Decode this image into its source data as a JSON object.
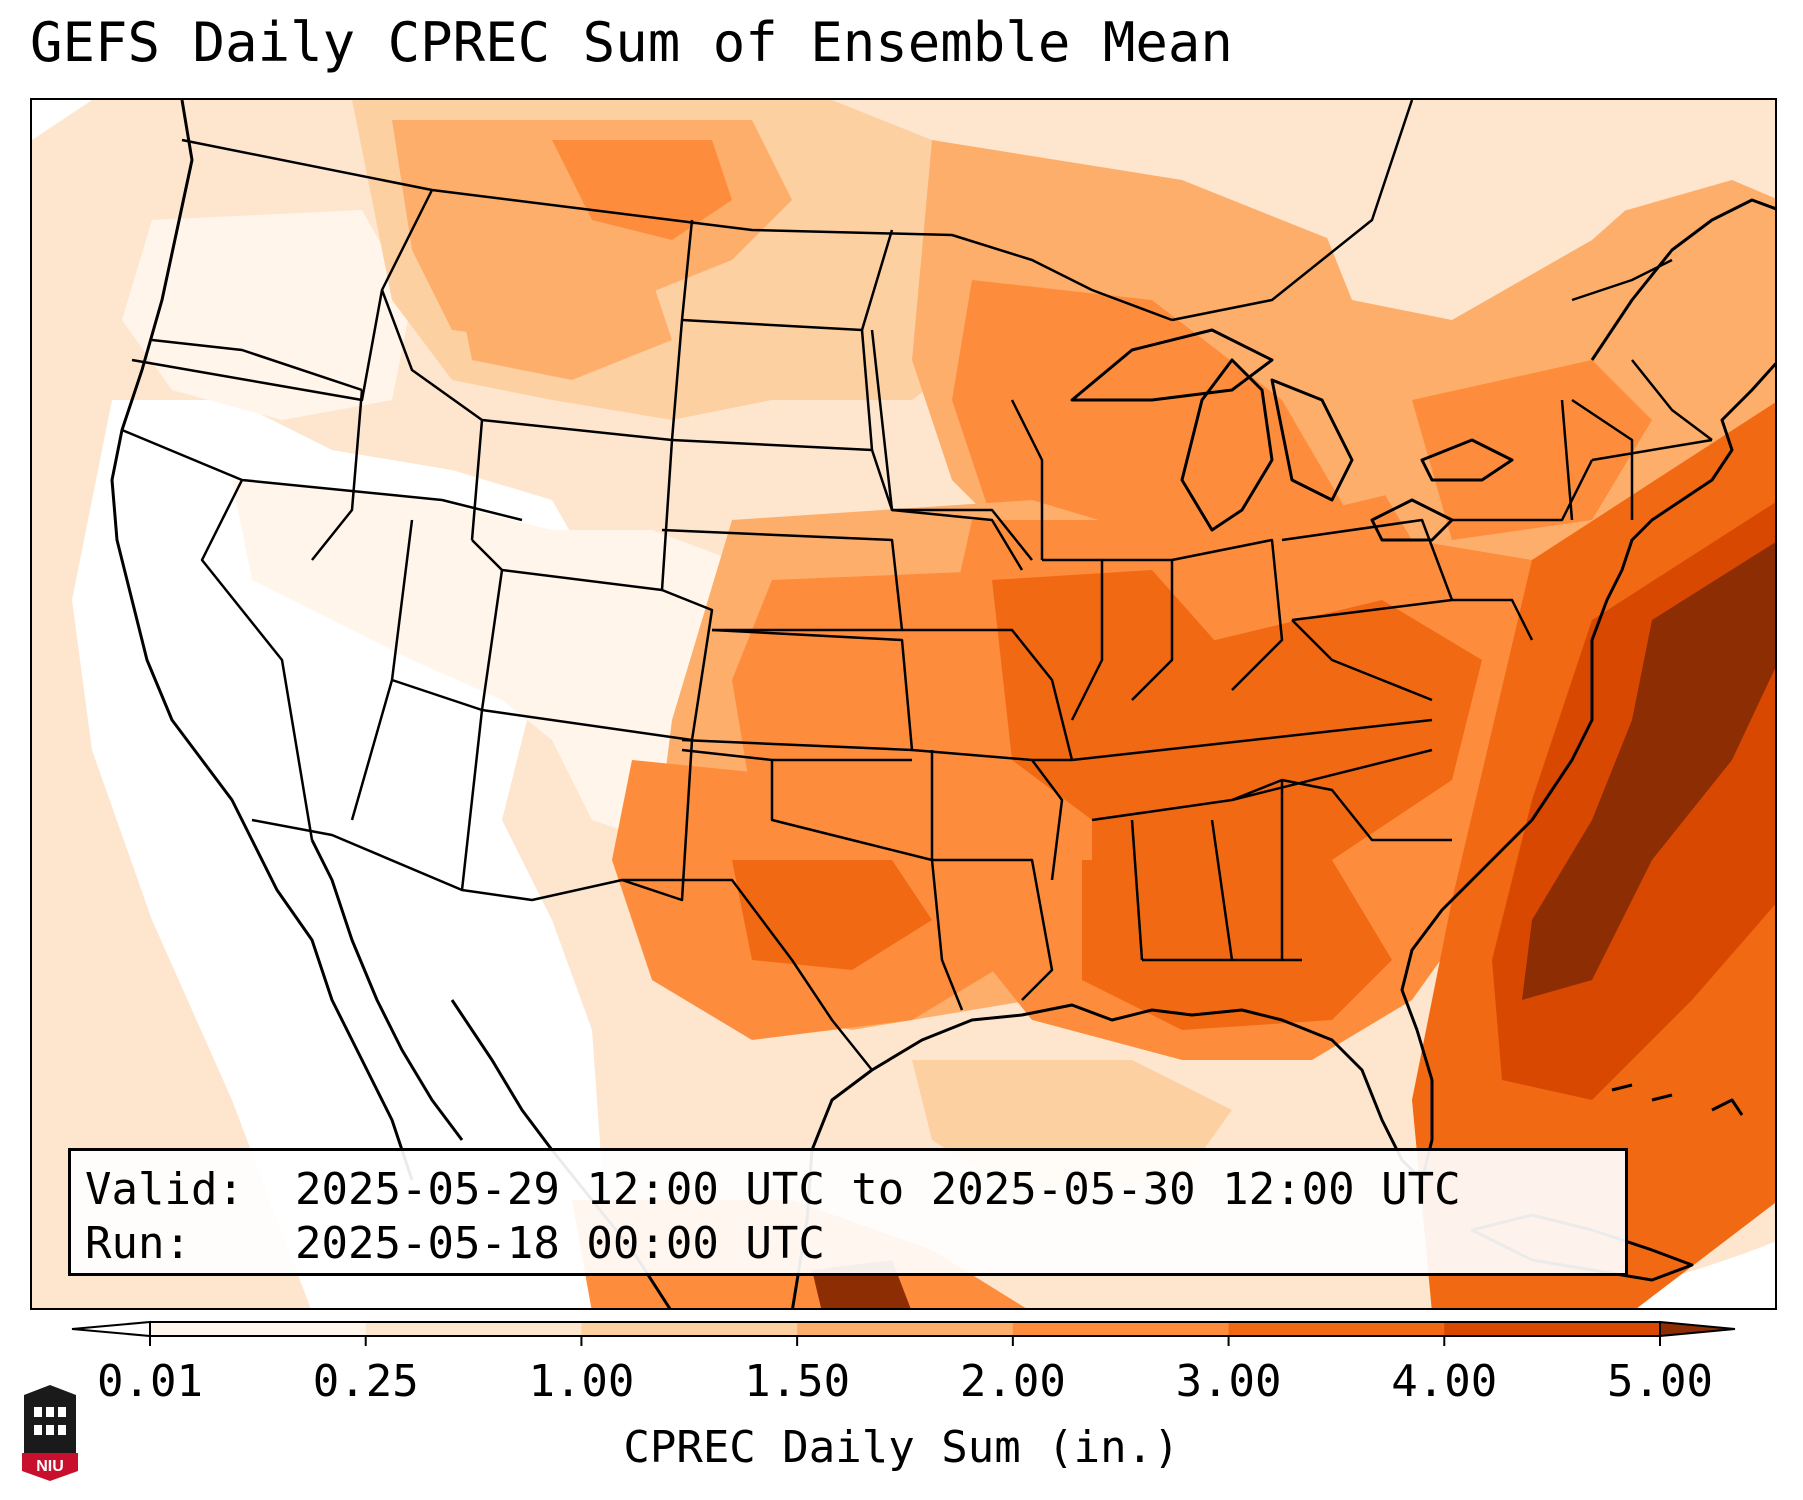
{
  "title": "GEFS Daily CPREC Sum of Ensemble Mean",
  "info": {
    "valid_label": "Valid:",
    "valid_value": "2025-05-29 12:00 UTC to 2025-05-30 12:00 UTC",
    "run_label": "Run:",
    "run_value": "2025-05-18 00:00 UTC"
  },
  "colorbar": {
    "label": "CPREC Daily Sum (in.)",
    "ticks": [
      "0.01",
      "0.25",
      "1.00",
      "1.50",
      "2.00",
      "3.00",
      "4.00",
      "5.00"
    ],
    "colors": [
      "#fff5eb",
      "#fee6ce",
      "#fdd0a2",
      "#fdae6b",
      "#fd8d3c",
      "#f16913",
      "#d94801"
    ],
    "under_color": "#ffffff",
    "over_color": "#8c2d04"
  },
  "map": {
    "projection": "Lambert Conformal",
    "region": "Continental United States",
    "field": "GEFS ensemble mean daily convective precipitation"
  },
  "logo": {
    "text": "NIU"
  }
}
